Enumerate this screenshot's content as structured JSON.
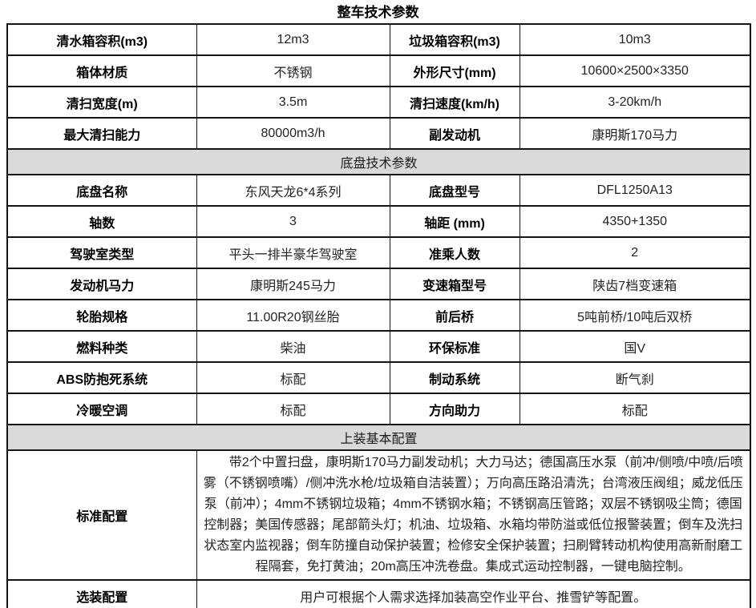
{
  "title": "整车技术参数",
  "colors": {
    "section_header_bg": "#d9d9d9",
    "border": "#141414",
    "label_text": "#000000",
    "value_text": "#232323",
    "page_bg": "#ffffff"
  },
  "vehicle_section": {
    "rows": [
      [
        "清水箱容积(m3)",
        "12m3",
        "垃圾箱容积(m3)",
        "10m3"
      ],
      [
        "箱体材质",
        "不锈钢",
        "外形尺寸(mm)",
        "10600×2500×3350"
      ],
      [
        "清扫宽度(m)",
        "3.5m",
        "清扫速度(km/h)",
        "3-20km/h"
      ],
      [
        "最大清扫能力",
        "80000m3/h",
        "副发动机",
        "康明斯170马力"
      ]
    ]
  },
  "chassis_section": {
    "header": "底盘技术参数",
    "rows": [
      [
        "底盘名称",
        "东风天龙6*4系列",
        "底盘型号",
        "DFL1250A13"
      ],
      [
        "轴数",
        "3",
        "轴距 (mm)",
        "4350+1350"
      ],
      [
        "驾驶室类型",
        "平头一排半豪华驾驶室",
        "准乘人数",
        "2"
      ],
      [
        "发动机马力",
        "康明斯245马力",
        "变速箱型号",
        "陕齿7档变速箱"
      ],
      [
        "轮胎规格",
        "11.00R20钢丝胎",
        "前后桥",
        "5吨前桥/10吨后双桥"
      ],
      [
        "燃料种类",
        "柴油",
        "环保标准",
        "国V"
      ],
      [
        "ABS防抱死系统",
        "标配",
        "制动系统",
        "断气刹"
      ],
      [
        "冷暖空调",
        "标配",
        "方向助力",
        "标配"
      ]
    ]
  },
  "upfit_section": {
    "header": "上装基本配置",
    "standard": {
      "label": "标准配置",
      "text": "带2个中置扫盘，康明斯170马力副发动机；大力马达；德国高压水泵（前冲/侧喷/中喷/后喷雾（不锈钢喷嘴）/侧冲洗水枪/垃圾箱自洁装置）；万向高压路沿清洗；台湾液压阀组；威龙低压泵（前冲）；4mm不锈钢垃圾箱；4mm不锈钢水箱；不锈钢高压管路；双层不锈钢吸尘筒；德国控制器；美国传感器；尾部箭头灯；机油、垃圾箱、水箱均带防溢或低位报警装置；倒车及洗扫状态室内监视器；倒车防撞自动保护装置；检修安全保护装置；扫刷臂转动机构使用高新耐磨工程隔套，免打黄油；20m高压冲洗卷盘。集成式运动控制器，一键电脑控制。"
    },
    "optional": {
      "label": "选装配置",
      "text": "用户可根据个人需求选择加装高空作业平台、推雪铲等配置。"
    }
  }
}
